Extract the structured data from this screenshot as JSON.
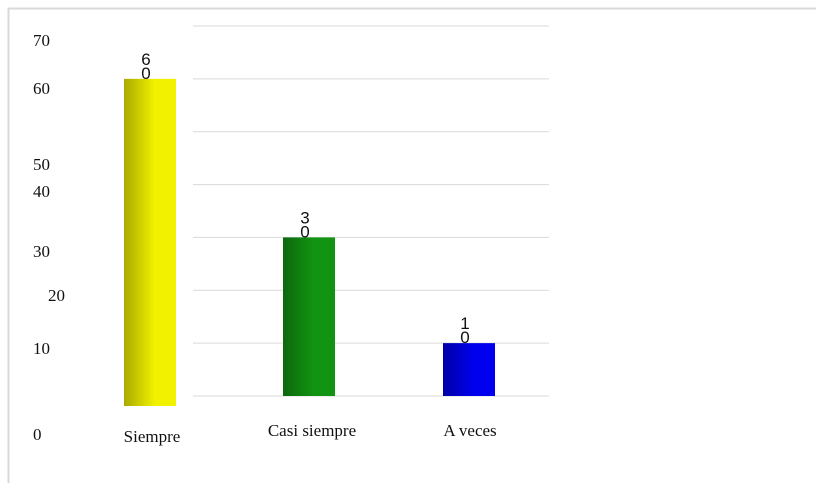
{
  "chart_data": {
    "type": "bar",
    "categories": [
      "Siempre",
      "Casi siempre",
      "A veces"
    ],
    "values": [
      60,
      30,
      10
    ],
    "colors": [
      "#f2f200",
      "#129412",
      "#0000ee"
    ],
    "ylim": [
      0,
      70
    ],
    "yticks": [
      0,
      10,
      20,
      30,
      40,
      50,
      60,
      70
    ],
    "grid": true
  }
}
